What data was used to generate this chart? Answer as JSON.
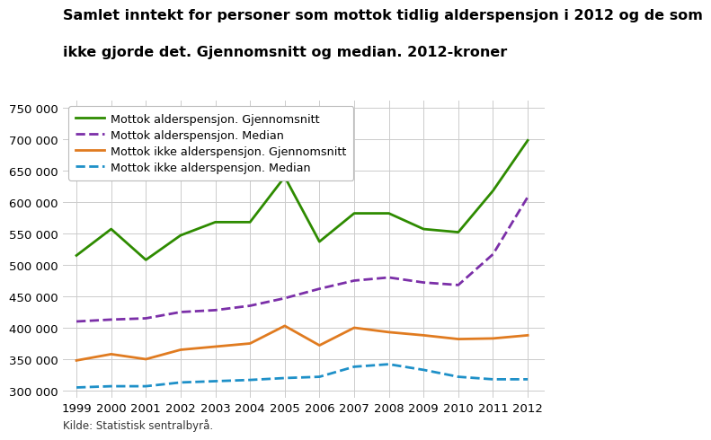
{
  "title_line1": "Samlet inntekt for personer som mottok tidlig alderspensjon i 2012 og de som",
  "title_line2": "ikke gjorde det. Gjennomsnitt og median. 2012-kroner",
  "years": [
    1999,
    2000,
    2001,
    2002,
    2003,
    2004,
    2005,
    2006,
    2007,
    2008,
    2009,
    2010,
    2011,
    2012
  ],
  "series": [
    {
      "key": "mottok_gjennomsnitt",
      "label": "Mottok alderspensjon. Gjennomsnitt",
      "color": "#2e8b00",
      "linestyle": "solid",
      "linewidth": 2.0,
      "values": [
        515000,
        557000,
        508000,
        547000,
        568000,
        568000,
        640000,
        537000,
        582000,
        582000,
        557000,
        552000,
        618000,
        698000
      ]
    },
    {
      "key": "mottok_median",
      "label": "Mottok alderspensjon. Median",
      "color": "#7b2fa8",
      "linestyle": "dashed",
      "linewidth": 2.0,
      "values": [
        410000,
        413000,
        415000,
        425000,
        428000,
        435000,
        447000,
        462000,
        475000,
        480000,
        472000,
        468000,
        517000,
        608000
      ]
    },
    {
      "key": "ikke_gjennomsnitt",
      "label": "Mottok ikke alderspensjon. Gjennomsnitt",
      "color": "#e07b20",
      "linestyle": "solid",
      "linewidth": 2.0,
      "values": [
        348000,
        358000,
        350000,
        365000,
        370000,
        375000,
        403000,
        372000,
        400000,
        393000,
        388000,
        382000,
        383000,
        388000
      ]
    },
    {
      "key": "ikke_median",
      "label": "Mottok ikke alderspensjon. Median",
      "color": "#1e90c8",
      "linestyle": "dashed",
      "linewidth": 2.0,
      "values": [
        305000,
        307000,
        307000,
        313000,
        315000,
        317000,
        320000,
        322000,
        338000,
        342000,
        333000,
        322000,
        318000,
        318000
      ]
    }
  ],
  "yticks": [
    300000,
    350000,
    400000,
    450000,
    500000,
    550000,
    600000,
    650000,
    700000,
    750000
  ],
  "ylim": [
    288000,
    762000
  ],
  "xlim": [
    1998.6,
    2012.5
  ],
  "background_color": "#ffffff",
  "grid_color": "#cccccc",
  "source": "Kilde: Statistisk sentralbyrå.",
  "title_fontsize": 11.5,
  "legend_fontsize": 9.2,
  "tick_fontsize": 9.5,
  "source_fontsize": 8.5
}
